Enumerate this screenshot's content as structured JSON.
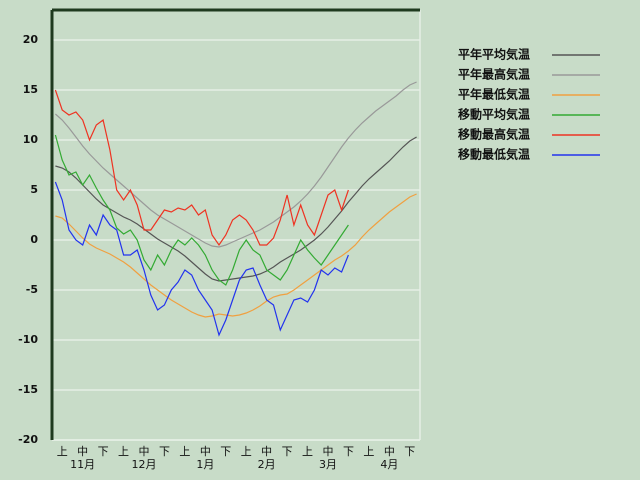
{
  "chart_data": {
    "type": "line",
    "categories": [
      null,
      "上",
      null,
      null,
      "中",
      null,
      null,
      "下",
      null,
      null,
      "上",
      null,
      null,
      "中",
      null,
      null,
      "下",
      null,
      null,
      "上",
      null,
      null,
      "中",
      null,
      null,
      "下",
      null,
      null,
      "上",
      null,
      null,
      "中",
      null,
      null,
      "下",
      null,
      null,
      "上",
      null,
      null,
      "中",
      null,
      null,
      "下",
      null,
      null,
      "上",
      null,
      null,
      "中",
      null,
      null,
      "下",
      null
    ],
    "months": [
      "11月",
      "12月",
      "1月",
      "2月",
      "3月",
      "4月"
    ],
    "ylim": [
      -20,
      23
    ],
    "yticks": [
      -20,
      -15,
      -10,
      -5,
      0,
      5,
      10,
      15,
      20
    ],
    "grid": true,
    "legend": "right",
    "series": [
      {
        "name": "平年平均気温",
        "color": "#555555",
        "values": [
          7.4,
          7.2,
          6.8,
          6.2,
          5.5,
          4.8,
          4.1,
          3.5,
          3.1,
          2.7,
          2.3,
          2.0,
          1.6,
          1.1,
          0.6,
          0.1,
          -0.3,
          -0.7,
          -1.1,
          -1.6,
          -2.2,
          -2.8,
          -3.4,
          -3.9,
          -4.1,
          -4.0,
          -3.9,
          -3.8,
          -3.7,
          -3.6,
          -3.4,
          -3.1,
          -2.7,
          -2.2,
          -1.8,
          -1.4,
          -1.0,
          -0.5,
          0.0,
          0.6,
          1.3,
          2.1,
          2.9,
          3.8,
          4.6,
          5.4,
          6.1,
          6.7,
          7.3,
          7.9,
          8.6,
          9.3,
          9.9,
          10.3
        ]
      },
      {
        "name": "平年最高気温",
        "color": "#999999",
        "values": [
          12.6,
          12.0,
          11.2,
          10.3,
          9.4,
          8.6,
          7.9,
          7.2,
          6.6,
          6.0,
          5.4,
          4.8,
          4.2,
          3.6,
          3.0,
          2.5,
          2.1,
          1.7,
          1.3,
          0.9,
          0.5,
          0.1,
          -0.3,
          -0.6,
          -0.7,
          -0.5,
          -0.2,
          0.1,
          0.4,
          0.7,
          1.0,
          1.4,
          1.8,
          2.3,
          2.8,
          3.3,
          3.9,
          4.6,
          5.4,
          6.3,
          7.3,
          8.3,
          9.3,
          10.2,
          11.0,
          11.7,
          12.3,
          12.9,
          13.4,
          13.9,
          14.4,
          15.0,
          15.5,
          15.8
        ]
      },
      {
        "name": "平年最低気温",
        "color": "#f0a040",
        "values": [
          2.4,
          2.2,
          1.6,
          0.9,
          0.2,
          -0.4,
          -0.8,
          -1.1,
          -1.4,
          -1.8,
          -2.2,
          -2.7,
          -3.3,
          -3.9,
          -4.5,
          -5.0,
          -5.5,
          -6.0,
          -6.4,
          -6.8,
          -7.2,
          -7.5,
          -7.7,
          -7.6,
          -7.4,
          -7.5,
          -7.6,
          -7.5,
          -7.3,
          -7.0,
          -6.6,
          -6.1,
          -5.7,
          -5.5,
          -5.4,
          -5.0,
          -4.5,
          -4.0,
          -3.5,
          -3.0,
          -2.5,
          -2.0,
          -1.6,
          -1.1,
          -0.5,
          0.3,
          1.0,
          1.6,
          2.2,
          2.8,
          3.3,
          3.8,
          4.3,
          4.6
        ]
      },
      {
        "name": "移動平均気温",
        "color": "#33aa33",
        "values": [
          10.5,
          8.0,
          6.5,
          6.8,
          5.5,
          6.5,
          5.2,
          4.0,
          3.0,
          1.2,
          0.6,
          1.0,
          0.0,
          -2.0,
          -3.0,
          -1.5,
          -2.5,
          -1.0,
          0.0,
          -0.5,
          0.2,
          -0.5,
          -1.5,
          -3.0,
          -4.0,
          -4.5,
          -3.0,
          -1.0,
          0.0,
          -1.0,
          -1.5,
          -3.0,
          -3.5,
          -4.0,
          -3.0,
          -1.5,
          0.0,
          -1.0,
          -1.8,
          -2.5,
          -1.5,
          -0.5,
          0.5,
          1.5,
          null,
          null,
          null,
          null,
          null,
          null,
          null,
          null,
          null,
          null
        ]
      },
      {
        "name": "移動最高気温",
        "color": "#ee3322",
        "values": [
          15.0,
          13.0,
          12.5,
          12.8,
          12.0,
          10.0,
          11.5,
          12.0,
          9.0,
          5.0,
          4.0,
          5.0,
          3.5,
          1.0,
          1.0,
          2.0,
          3.0,
          2.8,
          3.2,
          3.0,
          3.5,
          2.5,
          3.0,
          0.5,
          -0.5,
          0.5,
          2.0,
          2.5,
          2.0,
          1.0,
          -0.5,
          -0.5,
          0.2,
          2.0,
          4.5,
          1.5,
          3.5,
          1.5,
          0.5,
          2.5,
          4.5,
          5.0,
          3.0,
          5.0,
          null,
          null,
          null,
          null,
          null,
          null,
          null,
          null,
          null,
          null
        ]
      },
      {
        "name": "移動最低気温",
        "color": "#2233ee",
        "values": [
          5.8,
          4.0,
          1.0,
          0.0,
          -0.5,
          1.5,
          0.5,
          2.5,
          1.5,
          1.0,
          -1.5,
          -1.5,
          -1.0,
          -3.0,
          -5.5,
          -7.0,
          -6.5,
          -5.0,
          -4.2,
          -3.0,
          -3.5,
          -5.0,
          -6.0,
          -7.0,
          -9.5,
          -8.0,
          -6.0,
          -4.0,
          -3.0,
          -2.8,
          -4.5,
          -6.0,
          -6.5,
          -9.0,
          -7.5,
          -6.0,
          -5.8,
          -6.2,
          -5.0,
          -3.0,
          -3.5,
          -2.8,
          -3.2,
          -1.5,
          null,
          null,
          null,
          null,
          null,
          null,
          null,
          null,
          null,
          null
        ]
      }
    ]
  }
}
